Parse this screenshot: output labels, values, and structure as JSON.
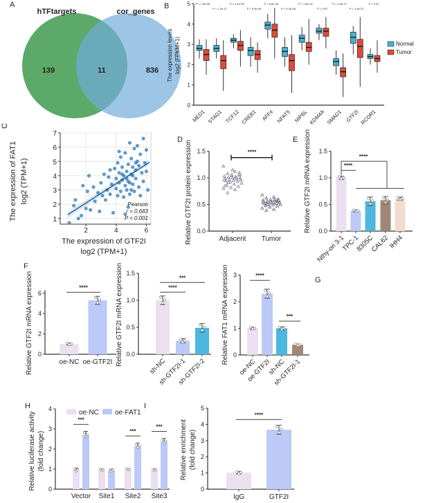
{
  "panel_letters": {
    "A": "A",
    "B": "B",
    "C": "C",
    "D": "D",
    "E": "E",
    "F": "F",
    "G": "G",
    "H": "H",
    "I": "I"
  },
  "colors": {
    "pink": "#ecdff0",
    "lavender": "#bdc9f6",
    "cyan": "#4db7df",
    "brown": "#a08878",
    "peach": "#f1ddd0",
    "normal": "#44b3d4",
    "tumor": "#e04a3a",
    "scatter": "#2b79b9",
    "venn_a": "#3f9a50",
    "venn_b": "#72acdc"
  },
  "chart_data": [
    {
      "panel": "A",
      "type": "venn",
      "sets": [
        "hTFtargets",
        "cor_genes"
      ],
      "only_a": "139",
      "both": "11",
      "only_b": "836"
    },
    {
      "panel": "B",
      "type": "box",
      "ylabel": "The expression levels",
      "ylabel2": "log2 (FPKM+1)",
      "yticks": [
        0,
        1,
        2,
        3,
        4,
        5
      ],
      "ylim": [
        0,
        5
      ],
      "categories": [
        "MED1",
        "STAG1",
        "TCF12",
        "CREB1",
        "AFF4",
        "NFAT5",
        "NIPBL",
        "KDM4A",
        "SMAD1",
        "GTF2I",
        "RCOR1"
      ],
      "p_values": [
        "P = 7.6e-08",
        "P = 1.2e-17",
        "P = 4.1e-08",
        "P = 5.4e-06",
        "P = 8.6e-05",
        "P = 9.2e-08",
        "P = 1.5e-14",
        "P = 0.97",
        "P = 2.0e-17",
        "P = 1.4e-07",
        "P = 0.01"
      ],
      "legend": "right",
      "series": [
        {
          "name": "Normal",
          "q1": [
            2.7,
            2.65,
            3.1,
            2.45,
            3.75,
            2.4,
            3.1,
            3.55,
            1.95,
            3.05,
            2.3
          ],
          "median": [
            2.8,
            2.8,
            3.2,
            2.7,
            3.95,
            2.65,
            3.3,
            3.65,
            2.15,
            3.35,
            2.4
          ],
          "q3": [
            2.95,
            2.95,
            3.3,
            2.85,
            4.1,
            2.85,
            3.45,
            3.8,
            2.3,
            3.6,
            2.5
          ],
          "lo": [
            2.3,
            2.3,
            2.8,
            1.9,
            3.3,
            1.9,
            2.7,
            3.2,
            1.5,
            2.5,
            2.0
          ],
          "hi": [
            3.25,
            3.3,
            3.5,
            3.35,
            4.5,
            3.35,
            3.85,
            4.0,
            2.7,
            3.9,
            2.8
          ]
        },
        {
          "name": "Tumor",
          "q1": [
            2.2,
            1.8,
            2.7,
            2.25,
            3.35,
            1.7,
            2.65,
            3.4,
            1.4,
            2.35,
            2.15
          ],
          "median": [
            2.5,
            2.2,
            2.95,
            2.5,
            3.7,
            2.2,
            2.85,
            3.65,
            1.65,
            2.9,
            2.3
          ],
          "q3": [
            2.75,
            2.45,
            3.15,
            2.7,
            4.0,
            2.5,
            3.1,
            3.8,
            1.85,
            3.25,
            2.45
          ],
          "lo": [
            1.5,
            0.7,
            1.9,
            1.6,
            2.3,
            0.6,
            2.0,
            2.8,
            0.4,
            0.9,
            1.6
          ],
          "hi": [
            3.25,
            3.2,
            3.7,
            3.1,
            4.8,
            3.45,
            4.25,
            4.35,
            2.55,
            4.35,
            3.2
          ]
        }
      ]
    },
    {
      "panel": "C",
      "type": "scatter",
      "xlabel": "The expression of GTF2I",
      "xlabel2": "log2 (TPM+1)",
      "ylabel": "The expression of FAT1",
      "ylabel2": "log2 (TPM+1)",
      "xlim": [
        0.3,
        6.3
      ],
      "ylim": [
        0.6,
        7
      ],
      "xticks": [
        2,
        4,
        6
      ],
      "yticks": [
        1,
        2,
        3,
        4,
        5,
        6,
        7
      ],
      "grid": true,
      "fit": {
        "slope": 0.68,
        "intercept": 0.72
      },
      "annotation": {
        "method": "Pearson",
        "r": "r = 0.683",
        "p": "P < 0.001"
      },
      "points": [
        [
          0.9,
          0.7
        ],
        [
          1.2,
          1.9
        ],
        [
          1.3,
          2.3
        ],
        [
          1.5,
          1.0
        ],
        [
          1.7,
          1.2
        ],
        [
          1.8,
          3.3
        ],
        [
          2.0,
          1.7
        ],
        [
          2.1,
          2.9
        ],
        [
          2.2,
          4.0
        ],
        [
          2.3,
          1.6
        ],
        [
          2.5,
          3.2
        ],
        [
          2.6,
          2.2
        ],
        [
          2.8,
          2.8
        ],
        [
          2.9,
          1.5
        ],
        [
          3.0,
          3.5
        ],
        [
          3.1,
          2.6
        ],
        [
          3.2,
          4.1
        ],
        [
          3.3,
          2.3
        ],
        [
          3.4,
          3.0
        ],
        [
          3.5,
          3.9
        ],
        [
          3.6,
          2.7
        ],
        [
          3.7,
          3.4
        ],
        [
          3.8,
          1.4
        ],
        [
          3.9,
          4.5
        ],
        [
          4.0,
          3.1
        ],
        [
          4.0,
          3.8
        ],
        [
          4.1,
          2.6
        ],
        [
          4.1,
          4.9
        ],
        [
          4.2,
          3.5
        ],
        [
          4.2,
          4.2
        ],
        [
          4.3,
          2.9
        ],
        [
          4.3,
          5.3
        ],
        [
          4.4,
          3.7
        ],
        [
          4.4,
          4.6
        ],
        [
          4.5,
          2.5
        ],
        [
          4.5,
          4.0
        ],
        [
          4.6,
          3.3
        ],
        [
          4.6,
          5.6
        ],
        [
          4.7,
          4.3
        ],
        [
          4.7,
          3.0
        ],
        [
          4.8,
          4.8
        ],
        [
          4.8,
          3.6
        ],
        [
          4.9,
          6.3
        ],
        [
          4.9,
          2.7
        ],
        [
          5.0,
          4.1
        ],
        [
          5.0,
          5.2
        ],
        [
          5.1,
          3.4
        ],
        [
          5.1,
          4.6
        ],
        [
          5.2,
          5.9
        ],
        [
          5.2,
          2.9
        ],
        [
          5.3,
          4.4
        ],
        [
          5.3,
          3.8
        ],
        [
          5.4,
          5.0
        ],
        [
          5.4,
          6.1
        ],
        [
          5.5,
          3.2
        ],
        [
          5.5,
          4.7
        ],
        [
          5.6,
          5.5
        ],
        [
          5.6,
          2.6
        ],
        [
          5.7,
          4.2
        ],
        [
          5.8,
          6.6
        ],
        [
          5.8,
          3.6
        ],
        [
          5.9,
          4.9
        ],
        [
          6.0,
          5.8
        ],
        [
          6.0,
          4.3
        ],
        [
          6.1,
          3.0
        ],
        [
          4.6,
          1.3
        ],
        [
          4.8,
          1.8
        ],
        [
          3.6,
          4.4
        ],
        [
          4.2,
          5.7
        ],
        [
          5.0,
          3.0
        ],
        [
          4.4,
          4.1
        ],
        [
          4.7,
          3.8
        ],
        [
          5.1,
          4.0
        ],
        [
          4.9,
          3.5
        ],
        [
          5.3,
          4.9
        ]
      ]
    },
    {
      "panel": "D",
      "type": "scatter",
      "ylabel": "Relative GTF2I protein expression",
      "categories": [
        "Adjacent",
        "Tumor"
      ],
      "yticks": [
        "0.0",
        "0.5",
        "1.0",
        "1.5"
      ],
      "ylim": [
        0,
        1.5
      ],
      "sig": "****",
      "groups": [
        [
          1.22,
          1.12,
          1.08,
          1.05,
          1.04,
          1.03,
          1.02,
          1.01,
          1.0,
          1.0,
          0.99,
          0.98,
          0.97,
          0.96,
          0.95,
          0.94,
          0.93,
          0.92,
          0.9,
          0.88,
          0.86,
          0.84,
          0.82,
          0.8,
          0.78,
          0.72,
          1.1,
          1.06,
          0.96,
          1.0,
          0.91,
          1.07,
          1.15,
          0.85
        ],
        [
          0.68,
          0.64,
          0.62,
          0.6,
          0.59,
          0.58,
          0.57,
          0.56,
          0.56,
          0.55,
          0.55,
          0.54,
          0.54,
          0.53,
          0.53,
          0.52,
          0.52,
          0.51,
          0.5,
          0.49,
          0.48,
          0.47,
          0.45,
          0.43,
          0.41,
          0.39,
          0.57,
          0.55,
          0.53,
          0.6,
          0.5,
          0.58
        ]
      ]
    },
    {
      "panel": "E",
      "type": "bar",
      "ylabel": "Relative GTF2I mRNA expression",
      "yticks": [
        "0.0",
        "0.5",
        "1.0",
        "1.5"
      ],
      "ylim": [
        0,
        1.5
      ],
      "categories": [
        "Nthy-ori 3-1",
        "TPC-1",
        "8305C",
        "CAL62",
        "IHH4"
      ],
      "values": [
        1.0,
        0.38,
        0.56,
        0.58,
        0.61
      ],
      "errors": [
        0.03,
        0.02,
        0.08,
        0.07,
        0.03
      ],
      "sig": [
        {
          "label": "****"
        },
        {
          "label": "****"
        }
      ]
    },
    {
      "panel": "F1",
      "type": "bar",
      "ylabel": "Relative GTF2I mRNA expression",
      "yticks": [
        "0",
        "2",
        "4",
        "6"
      ],
      "ylim": [
        0,
        6
      ],
      "categories": [
        "oe-NC",
        "oe-GTF2I"
      ],
      "values": [
        1.0,
        5.3
      ],
      "errors": [
        0.1,
        0.4
      ],
      "sig": [
        {
          "a": 0,
          "b": 1,
          "y": 6.1,
          "label": "****"
        }
      ]
    },
    {
      "panel": "F2",
      "type": "bar",
      "ylabel": "Relative GTF2I mRNA expression",
      "yticks": [
        "0.0",
        "0.5",
        "1.0",
        "1.5"
      ],
      "ylim": [
        0,
        1.5
      ],
      "categories": [
        "sh-NC",
        "sh-GTF2I-1",
        "sh-GTF2I-2"
      ],
      "values": [
        1.0,
        0.25,
        0.49
      ],
      "errors": [
        0.08,
        0.04,
        0.08
      ],
      "sig": [
        {
          "a": 0,
          "b": 1,
          "y": 1.15,
          "label": "****"
        },
        {
          "a": 0,
          "b": 2,
          "y": 1.33,
          "label": "***"
        }
      ]
    },
    {
      "panel": "G",
      "type": "bar",
      "ylabel": "Relative FAT1 mRNA expression",
      "yticks": [
        "0",
        "1",
        "2",
        "3"
      ],
      "ylim": [
        0,
        3
      ],
      "categories": [
        "oe-NC",
        "oe-GTF2I",
        "sh-NC",
        "sh-GTF2I-1"
      ],
      "values": [
        1.0,
        2.3,
        1.0,
        0.38
      ],
      "errors": [
        0.04,
        0.17,
        0.06,
        0.03
      ],
      "sig": [
        {
          "a": 0,
          "b": 1,
          "y": 2.8,
          "label": "****"
        },
        {
          "a": 2,
          "b": 3,
          "y": 1.27,
          "label": "***"
        }
      ]
    },
    {
      "panel": "H",
      "type": "grouped-bar",
      "ylabel": "Relative luciferase activity",
      "ylabel2": "(fold change)",
      "yticks": [
        "0",
        "1",
        "2",
        "3",
        "4"
      ],
      "ylim": [
        0,
        4
      ],
      "legend": "top",
      "categories": [
        "Vector",
        "Site1",
        "Site2",
        "Site3"
      ],
      "series": [
        {
          "name": "oe-NC",
          "values": [
            0.95,
            0.95,
            0.98,
            0.95
          ],
          "errors": [
            0.1,
            0.06,
            0.05,
            0.06
          ]
        },
        {
          "name": "oe-FAT1",
          "values": [
            2.7,
            0.93,
            2.15,
            2.38
          ],
          "errors": [
            0.18,
            0.07,
            0.15,
            0.15
          ]
        }
      ],
      "sig": [
        "***",
        "",
        "***",
        "***"
      ]
    },
    {
      "panel": "I",
      "type": "bar",
      "ylabel": "Relative enrichment",
      "ylabel2": "(fold change)",
      "yticks": [
        "0",
        "1",
        "2",
        "3",
        "4",
        "5"
      ],
      "ylim": [
        0,
        5
      ],
      "categories": [
        "IgG",
        "GTF2I"
      ],
      "values": [
        1.02,
        3.67
      ],
      "errors": [
        0.08,
        0.28
      ],
      "sig": [
        {
          "a": 0,
          "b": 1,
          "y": 4.3,
          "label": "****"
        }
      ]
    }
  ]
}
